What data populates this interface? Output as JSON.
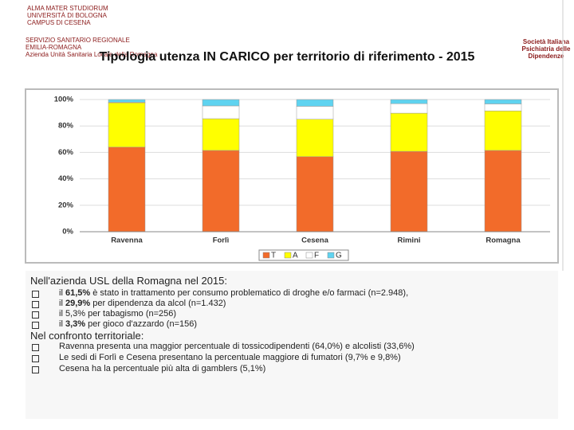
{
  "header": {
    "logo_left_1": [
      "ALMA MATER STUDIORUM",
      "UNIVERSITÀ DI BOLOGNA",
      "CAMPUS DI CESENA"
    ],
    "logo_left_2": [
      "SERVIZIO SANITARIO REGIONALE",
      "EMILIA-ROMAGNA",
      "Azienda Unità Sanitaria Locale della Romagna"
    ],
    "logo_right": [
      "Società Italiana",
      "Psichiatria delle",
      "Dipendenze"
    ]
  },
  "chart_data": {
    "type": "stacked_bar",
    "title": "Tipologia utenza IN CARICO per territorio di riferimento - 2015",
    "categories": [
      "Ravenna",
      "Forlì",
      "Cesena",
      "Rimini",
      "Romagna"
    ],
    "series": [
      {
        "name": "T",
        "color": "#f26b2a",
        "values": [
          64.0,
          61.5,
          56.8,
          60.8,
          61.5
        ]
      },
      {
        "name": "A",
        "color": "#ffff00",
        "values": [
          33.6,
          24.0,
          28.3,
          28.9,
          29.9
        ]
      },
      {
        "name": "F",
        "color": "#ffffff",
        "values": [
          0.4,
          9.7,
          9.8,
          7.2,
          5.3
        ]
      },
      {
        "name": "G",
        "color": "#5fd3f0",
        "values": [
          2.0,
          4.8,
          5.1,
          3.1,
          3.3
        ]
      }
    ],
    "ylim": [
      0,
      100
    ],
    "yticks": [
      {
        "value": 0,
        "label": "0%"
      },
      {
        "value": 20,
        "label": "20%"
      },
      {
        "value": 40,
        "label": "40%"
      },
      {
        "value": 60,
        "label": "60%"
      },
      {
        "value": 80,
        "label": "80%"
      },
      {
        "value": 100,
        "label": "100%"
      }
    ],
    "legend": "bottom"
  },
  "notes": {
    "intro_1": "Nell'azienda USL della Romagna nel 2015:",
    "bullets_1": [
      [
        "il ",
        "61,5%",
        " è stato in trattamento per consumo problematico di droghe e/o farmaci (n=2.948),"
      ],
      [
        "il ",
        "29,9%",
        " per dipendenza da alcol (n=1.432)"
      ],
      [
        "il 5,3% per tabagismo (n=256)"
      ],
      [
        "il ",
        "3,3%",
        " per gioco d'azzardo (n=156)"
      ]
    ],
    "intro_2": "Nel confronto territoriale:",
    "bullets_2": [
      [
        "Ravenna presenta una maggior percentuale di tossicodipendenti (64,0%) e alcolisti (33,6%)"
      ],
      [
        "Le sedi di Forlì e Cesena presentano la percentuale maggiore di fumatori (9,7% e 9,8%)"
      ],
      [
        "Cesena ha la percentuale più alta di gamblers (5,1%)"
      ]
    ]
  }
}
